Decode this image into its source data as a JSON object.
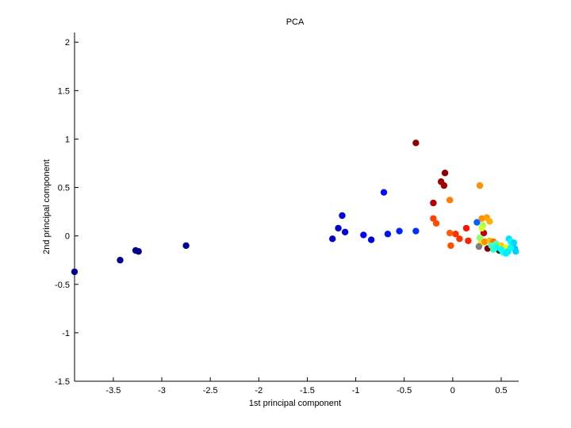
{
  "chart_data": {
    "type": "scatter",
    "title": "PCA",
    "xlabel": "1st principal component",
    "ylabel": "2nd principal component",
    "xlim": [
      -3.9,
      0.68
    ],
    "ylim": [
      -1.5,
      2.1
    ],
    "xticks": [
      -3.5,
      -3,
      -2.5,
      -2,
      -1.5,
      -1,
      -0.5,
      0,
      0.5
    ],
    "xtick_labels": [
      "-3.5",
      "-3",
      "-2.5",
      "-2",
      "-1.5",
      "-1",
      "-0.5",
      "0",
      "0.5"
    ],
    "yticks": [
      -1.5,
      -1,
      -0.5,
      0,
      0.5,
      1,
      1.5,
      2
    ],
    "ytick_labels": [
      "-1.5",
      "-1",
      "-0.5",
      "0",
      "0.5",
      "1",
      "1.5",
      "2"
    ],
    "grid": false,
    "points": [
      {
        "x": -3.9,
        "y": -0.37,
        "color": "#00008f"
      },
      {
        "x": -3.43,
        "y": -0.25,
        "color": "#00008f"
      },
      {
        "x": -3.27,
        "y": -0.15,
        "color": "#00008f"
      },
      {
        "x": -3.24,
        "y": -0.16,
        "color": "#00008f"
      },
      {
        "x": -2.75,
        "y": -0.1,
        "color": "#00008f"
      },
      {
        "x": -1.24,
        "y": -0.03,
        "color": "#0000cc"
      },
      {
        "x": -1.18,
        "y": 0.08,
        "color": "#0000cc"
      },
      {
        "x": -1.14,
        "y": 0.21,
        "color": "#0000dd"
      },
      {
        "x": -1.11,
        "y": 0.04,
        "color": "#0000dd"
      },
      {
        "x": -0.92,
        "y": 0.01,
        "color": "#0000ee"
      },
      {
        "x": -0.84,
        "y": -0.04,
        "color": "#0000ee"
      },
      {
        "x": -0.71,
        "y": 0.45,
        "color": "#0010ff"
      },
      {
        "x": -0.67,
        "y": 0.02,
        "color": "#0010ff"
      },
      {
        "x": -0.55,
        "y": 0.05,
        "color": "#0020ff"
      },
      {
        "x": -0.38,
        "y": 0.05,
        "color": "#0030ff"
      },
      {
        "x": 0.25,
        "y": 0.14,
        "color": "#0060ff"
      },
      {
        "x": -0.38,
        "y": 0.96,
        "color": "#8f0000"
      },
      {
        "x": -0.08,
        "y": 0.65,
        "color": "#8f0000"
      },
      {
        "x": -0.12,
        "y": 0.56,
        "color": "#a00000"
      },
      {
        "x": -0.09,
        "y": 0.52,
        "color": "#a00000"
      },
      {
        "x": -0.2,
        "y": 0.34,
        "color": "#b00000"
      },
      {
        "x": 0.36,
        "y": -0.13,
        "color": "#800000"
      },
      {
        "x": -0.2,
        "y": 0.18,
        "color": "#ff4000"
      },
      {
        "x": -0.17,
        "y": 0.13,
        "color": "#ff5000"
      },
      {
        "x": -0.03,
        "y": 0.37,
        "color": "#ff8000"
      },
      {
        "x": 0.28,
        "y": 0.52,
        "color": "#ff9000"
      },
      {
        "x": 0.14,
        "y": 0.08,
        "color": "#ff1000"
      },
      {
        "x": 0.03,
        "y": 0.02,
        "color": "#ff3000"
      },
      {
        "x": 0.07,
        "y": -0.03,
        "color": "#ff3000"
      },
      {
        "x": 0.16,
        "y": -0.05,
        "color": "#ff2000"
      },
      {
        "x": -0.02,
        "y": -0.1,
        "color": "#ff5000"
      },
      {
        "x": -0.03,
        "y": 0.03,
        "color": "#ff6000"
      },
      {
        "x": 0.3,
        "y": 0.18,
        "color": "#ff9000"
      },
      {
        "x": 0.35,
        "y": 0.19,
        "color": "#ffa000"
      },
      {
        "x": 0.38,
        "y": 0.15,
        "color": "#ffb000"
      },
      {
        "x": 0.32,
        "y": 0.03,
        "color": "#c00000"
      },
      {
        "x": 0.31,
        "y": 0.11,
        "color": "#aaff55"
      },
      {
        "x": 0.3,
        "y": 0.08,
        "color": "#d0ff30"
      },
      {
        "x": 0.28,
        "y": -0.02,
        "color": "#90ff70"
      },
      {
        "x": 0.29,
        "y": -0.08,
        "color": "#ffe000"
      },
      {
        "x": 0.27,
        "y": -0.11,
        "color": "#808080"
      },
      {
        "x": 0.33,
        "y": -0.06,
        "color": "#ff9000"
      },
      {
        "x": 0.38,
        "y": -0.05,
        "color": "#ffc000"
      },
      {
        "x": 0.42,
        "y": -0.06,
        "color": "#ff7000"
      },
      {
        "x": 0.45,
        "y": -0.08,
        "color": "#60ffa0"
      },
      {
        "x": 0.5,
        "y": -0.1,
        "color": "#ffd000"
      },
      {
        "x": 0.55,
        "y": -0.12,
        "color": "#f0ff10"
      },
      {
        "x": 0.4,
        "y": -0.1,
        "color": "#40ffc0"
      },
      {
        "x": 0.48,
        "y": -0.15,
        "color": "#202020"
      },
      {
        "x": 0.52,
        "y": -0.17,
        "color": "#20ffe0"
      },
      {
        "x": 0.45,
        "y": -0.12,
        "color": "#00ffff"
      },
      {
        "x": 0.58,
        "y": -0.03,
        "color": "#00e0ff"
      },
      {
        "x": 0.6,
        "y": -0.06,
        "color": "#00ffff"
      },
      {
        "x": 0.62,
        "y": -0.1,
        "color": "#10f0ff"
      },
      {
        "x": 0.64,
        "y": -0.13,
        "color": "#00c0ff"
      },
      {
        "x": 0.65,
        "y": -0.16,
        "color": "#00d0ff"
      },
      {
        "x": 0.57,
        "y": -0.16,
        "color": "#00e8ff"
      },
      {
        "x": 0.6,
        "y": -0.12,
        "color": "#00ffff"
      },
      {
        "x": 0.55,
        "y": -0.18,
        "color": "#00f0ff"
      },
      {
        "x": 0.63,
        "y": -0.07,
        "color": "#00d8ff"
      },
      {
        "x": 0.5,
        "y": -0.14,
        "color": "#00ffff"
      },
      {
        "x": 0.42,
        "y": -0.14,
        "color": "#30ffd0"
      }
    ]
  }
}
